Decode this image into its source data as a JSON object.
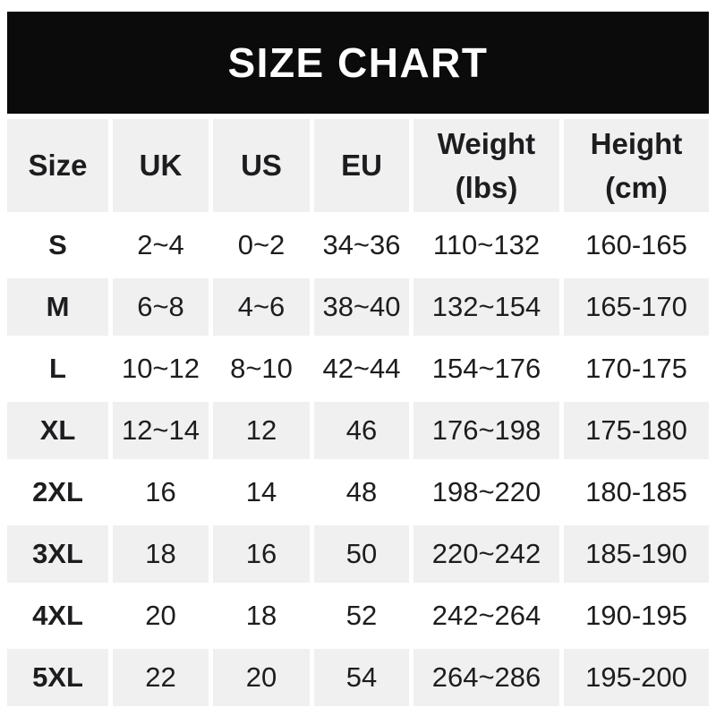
{
  "header": {
    "title": "SIZE CHART"
  },
  "colors": {
    "banner_bg": "#0b0b0b",
    "banner_text": "#ffffff",
    "row_shade": "#f0f0f0",
    "text": "#1d1d1f",
    "page_bg": "#ffffff"
  },
  "table": {
    "columns": [
      {
        "key": "size",
        "label": "Size",
        "sub": ""
      },
      {
        "key": "uk",
        "label": "UK",
        "sub": ""
      },
      {
        "key": "us",
        "label": "US",
        "sub": ""
      },
      {
        "key": "eu",
        "label": "EU",
        "sub": ""
      },
      {
        "key": "weight",
        "label": "Weight",
        "sub": "(lbs)"
      },
      {
        "key": "height",
        "label": "Height",
        "sub": "(cm)"
      }
    ],
    "rows": [
      {
        "cells": [
          "S",
          "2~4",
          "0~2",
          "34~36",
          "110~132",
          "160-165"
        ]
      },
      {
        "cells": [
          "M",
          "6~8",
          "4~6",
          "38~40",
          "132~154",
          "165-170"
        ]
      },
      {
        "cells": [
          "L",
          "10~12",
          "8~10",
          "42~44",
          "154~176",
          "170-175"
        ]
      },
      {
        "cells": [
          "XL",
          "12~14",
          "12",
          "46",
          "176~198",
          "175-180"
        ]
      },
      {
        "cells": [
          "2XL",
          "16",
          "14",
          "48",
          "198~220",
          "180-185"
        ]
      },
      {
        "cells": [
          "3XL",
          "18",
          "16",
          "50",
          "220~242",
          "185-190"
        ]
      },
      {
        "cells": [
          "4XL",
          "20",
          "18",
          "52",
          "242~264",
          "190-195"
        ]
      },
      {
        "cells": [
          "5XL",
          "22",
          "20",
          "54",
          "264~286",
          "195-200"
        ]
      }
    ]
  },
  "chart_data": {
    "type": "table",
    "title": "SIZE CHART",
    "columns": [
      "Size",
      "UK",
      "US",
      "EU",
      "Weight (lbs)",
      "Height (cm)"
    ],
    "rows": [
      [
        "S",
        "2~4",
        "0~2",
        "34~36",
        "110~132",
        "160-165"
      ],
      [
        "M",
        "6~8",
        "4~6",
        "38~40",
        "132~154",
        "165-170"
      ],
      [
        "L",
        "10~12",
        "8~10",
        "42~44",
        "154~176",
        "170-175"
      ],
      [
        "XL",
        "12~14",
        "12",
        "46",
        "176~198",
        "175-180"
      ],
      [
        "2XL",
        "16",
        "14",
        "48",
        "198~220",
        "180-185"
      ],
      [
        "3XL",
        "18",
        "16",
        "50",
        "220~242",
        "185-190"
      ],
      [
        "4XL",
        "20",
        "18",
        "52",
        "242~264",
        "190-195"
      ],
      [
        "5XL",
        "22",
        "20",
        "54",
        "264~286",
        "195-200"
      ]
    ],
    "layout": {
      "shaded_rows": [
        "M",
        "XL",
        "3XL",
        "5XL"
      ],
      "header_shaded": true,
      "grid": "white gutters between cells"
    }
  }
}
